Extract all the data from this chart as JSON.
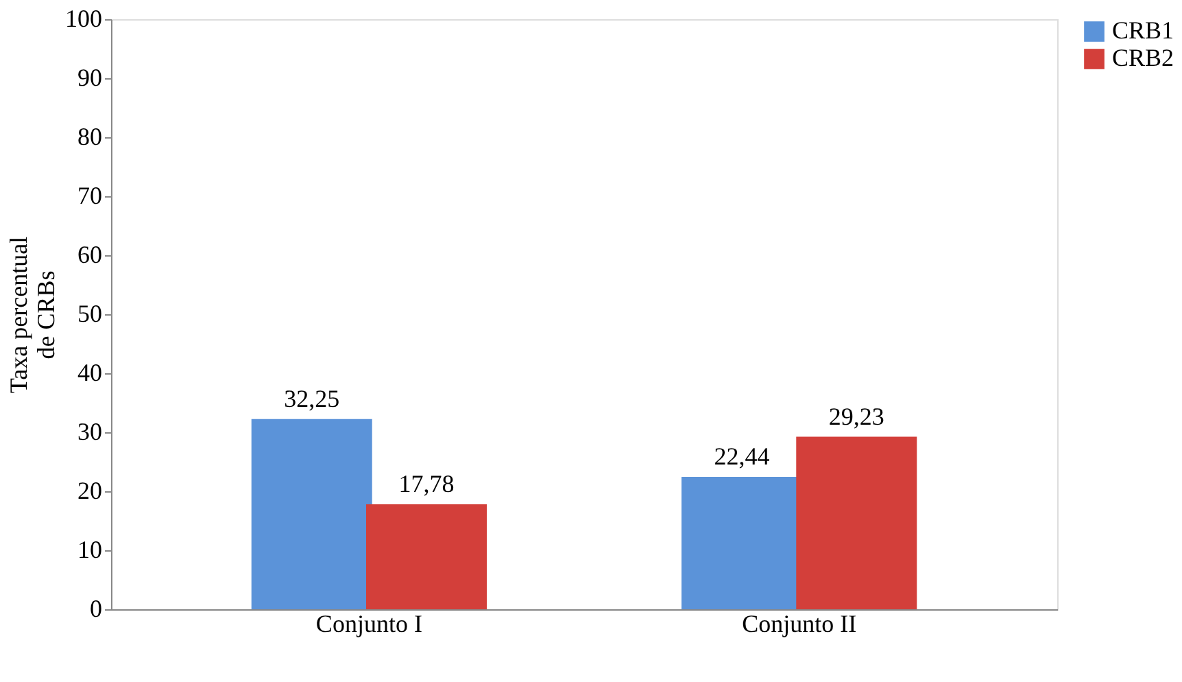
{
  "chart_data": {
    "type": "bar",
    "ylabel": "Taxa percentual\nde CRBs",
    "categories": [
      "Conjunto I",
      "Conjunto II"
    ],
    "series": [
      {
        "name": "CRB1",
        "color": "#5b93d9",
        "values": [
          32.25,
          22.44
        ],
        "value_labels": [
          "32,25",
          "22,44"
        ]
      },
      {
        "name": "CRB2",
        "color": "#d33f3a",
        "values": [
          17.78,
          29.23
        ],
        "value_labels": [
          "17,78",
          "29,23"
        ]
      }
    ],
    "ylim": [
      0,
      100
    ],
    "yticks": [
      0,
      10,
      20,
      30,
      40,
      50,
      60,
      70,
      80,
      90,
      100
    ],
    "grid": false,
    "legend": "right"
  }
}
